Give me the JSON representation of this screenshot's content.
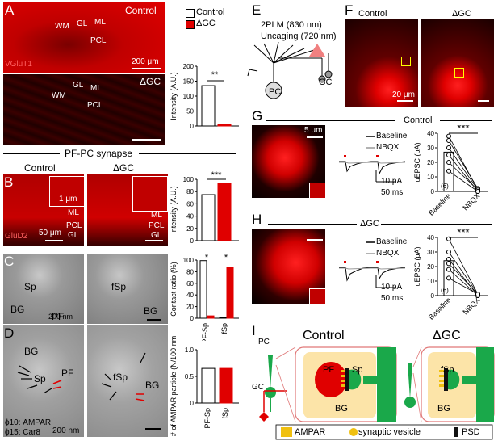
{
  "panelA": {
    "letter": "A",
    "control": "Control",
    "dgc": "ΔGC",
    "stain": "VGluT1",
    "labels": {
      "wm": "WM",
      "gl": "GL",
      "ml": "ML",
      "pcl": "PCL"
    },
    "scale": "200 μm",
    "legend_control": "Control",
    "legend_dgc": "ΔGC",
    "colors": {
      "control": "#ffffff",
      "dgc": "#e00000"
    }
  },
  "section_title": "PF-PC synapse",
  "panelB": {
    "letter": "B",
    "control": "Control",
    "dgc": "ΔGC",
    "stain": "GluD2",
    "inset_scale": "1 μm",
    "scale": "50 μm",
    "labels": {
      "ml": "ML",
      "pcl": "PCL",
      "gl": "GL"
    }
  },
  "panelC": {
    "letter": "C",
    "labels": {
      "sp": "Sp",
      "bg": "BG",
      "pf": "PF",
      "fsp": "fSp",
      "bg2": "BG"
    },
    "scale": "200 nm"
  },
  "panelD": {
    "letter": "D",
    "labels": {
      "bg": "BG",
      "sp": "Sp",
      "pf": "PF",
      "fsp": "fSp",
      "bg2": "BG"
    },
    "footnote1": "ϕ10: AMPAR",
    "footnote2": "ϕ15: Car8",
    "scale": "200 nm"
  },
  "panelE": {
    "letter": "E",
    "line1": "2PLM (830 nm)",
    "line2": "Uncaging (720 nm)",
    "pc": "PC",
    "gc": "GC"
  },
  "panelF": {
    "letter": "F",
    "control": "Control",
    "dgc": "ΔGC",
    "scale": "20 μm"
  },
  "panelG": {
    "letter": "G",
    "title": "Control",
    "scale": "5 μm",
    "legend_baseline": "Baseline",
    "legend_nbqx": "NBQX",
    "yscale": "10 pA",
    "xscale": "50 ms",
    "n": "(6)",
    "sig": "***"
  },
  "panelH": {
    "letter": "H",
    "title": "ΔGC",
    "legend_baseline": "Baseline",
    "legend_nbqx": "NBQX",
    "yscale": "10 pA",
    "xscale": "50 ms",
    "n": "(6)",
    "sig": "***"
  },
  "panelI": {
    "letter": "I",
    "control": "Control",
    "dgc": "ΔGC",
    "pc": "PC",
    "gc": "GC",
    "pf": "PF",
    "sp": "Sp",
    "bg": "BG",
    "fsp": "fSp",
    "bg2": "BG",
    "legend_ampar": "AMPAR",
    "legend_vesicle": "synaptic vesicle",
    "legend_psd": "PSD"
  },
  "chart_data": [
    {
      "id": "A-intensity",
      "type": "bar",
      "categories": [
        "Control",
        "ΔGC"
      ],
      "values": [
        135,
        6
      ],
      "ylabel": "Intensity (A.U.)",
      "ylim": [
        0,
        200
      ],
      "yticks": [
        "0",
        "50",
        "100",
        "150",
        "200"
      ],
      "sig": "**"
    },
    {
      "id": "B-intensity",
      "type": "bar",
      "categories": [
        "Control",
        "ΔGC"
      ],
      "values": [
        75,
        94
      ],
      "ylabel": "Intensity (A.U.)",
      "ylim": [
        0,
        100
      ],
      "yticks": [
        "0",
        "20",
        "40",
        "60",
        "80",
        "100"
      ],
      "sig": "***"
    },
    {
      "id": "C-contact",
      "type": "bar",
      "categories": [
        "PF-Sp",
        "fSp"
      ],
      "series": [
        {
          "name": "Control",
          "values": [
            99,
            1
          ]
        },
        {
          "name": "ΔGC",
          "values": [
            4,
            88
          ]
        }
      ],
      "ylabel": "Contact ratio (%)",
      "ylim": [
        0,
        100
      ],
      "yticks": [
        "0",
        "20",
        "40",
        "60",
        "80",
        "100"
      ],
      "sig": [
        "*",
        "*"
      ]
    },
    {
      "id": "D-ampar",
      "type": "bar",
      "categories": [
        "PF-Sp",
        "fSp"
      ],
      "values": [
        0.65,
        0.65
      ],
      "ylabel": "# of AMPAR particle (N/100 nm PSD)",
      "ylim": [
        0,
        1.0
      ],
      "yticks": [
        "0",
        "0.5",
        "1.0"
      ]
    },
    {
      "id": "G-uepsc",
      "type": "scatter",
      "categories": [
        "Baseline",
        "NBQX"
      ],
      "ylabel": "uEPSC (pA)",
      "ylim": [
        0,
        40
      ],
      "yticks": [
        "0",
        "10",
        "20",
        "30",
        "40"
      ],
      "pairs": [
        [
          38,
          1
        ],
        [
          35,
          2
        ],
        [
          30,
          1
        ],
        [
          25,
          0
        ],
        [
          20,
          1
        ],
        [
          14,
          0
        ]
      ],
      "mean": [
        27,
        1
      ]
    },
    {
      "id": "H-uepsc",
      "type": "scatter",
      "categories": [
        "Baseline",
        "NBQX"
      ],
      "ylabel": "uEPSC (pA)",
      "ylim": [
        0,
        40
      ],
      "yticks": [
        "0",
        "10",
        "20",
        "30",
        "40"
      ],
      "pairs": [
        [
          39,
          1
        ],
        [
          30,
          1
        ],
        [
          25,
          0
        ],
        [
          22,
          1
        ],
        [
          18,
          0
        ],
        [
          12,
          1
        ]
      ],
      "mean": [
        24,
        1
      ]
    }
  ]
}
